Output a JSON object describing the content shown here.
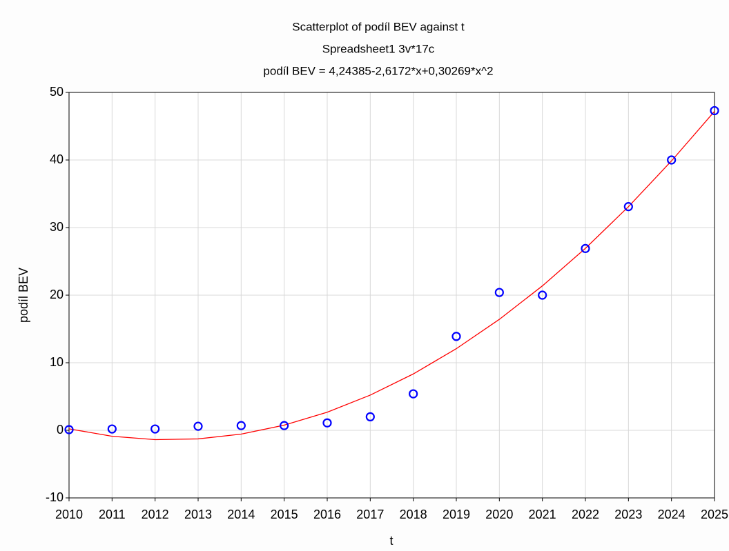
{
  "chart_data": {
    "type": "scatter",
    "title": "Scatterplot of podíl BEV against t",
    "subtitle": "Spreadsheet1 3v*17c",
    "annotation": "podíl BEV = 4,24385-2,6172*x+0,30269*x^2",
    "x_label": "t",
    "y_label": "podíl BEV",
    "xlim": [
      2010,
      2025
    ],
    "xticks": [
      2010,
      2011,
      2012,
      2013,
      2014,
      2015,
      2016,
      2017,
      2018,
      2019,
      2020,
      2021,
      2022,
      2023,
      2024,
      2025
    ],
    "ylim": [
      -10,
      50
    ],
    "yticks": [
      -10,
      0,
      10,
      20,
      30,
      40,
      50
    ],
    "grid": true,
    "series": [
      {
        "type": "scatter",
        "color": "#0000ff",
        "x": [
          2010,
          2011,
          2012,
          2013,
          2014,
          2015,
          2016,
          2017,
          2018,
          2019,
          2020,
          2021,
          2022,
          2023,
          2024,
          2025
        ],
        "values": [
          0.1,
          0.2,
          0.2,
          0.6,
          0.7,
          0.7,
          1.1,
          2.0,
          5.4,
          13.9,
          20.4,
          20.0,
          26.9,
          33.1,
          40.0,
          47.3
        ]
      },
      {
        "type": "line",
        "color": "#ff0000",
        "x": [
          2010,
          2011,
          2012,
          2013,
          2014,
          2015,
          2016,
          2017,
          2018,
          2019,
          2020,
          2021,
          2022,
          2023,
          2024,
          2025
        ],
        "values": [
          0.22,
          -0.88,
          -1.38,
          -1.27,
          -0.56,
          0.76,
          2.68,
          5.21,
          8.34,
          12.08,
          16.42,
          21.37,
          26.93,
          33.09,
          39.86,
          47.2
        ]
      }
    ]
  }
}
